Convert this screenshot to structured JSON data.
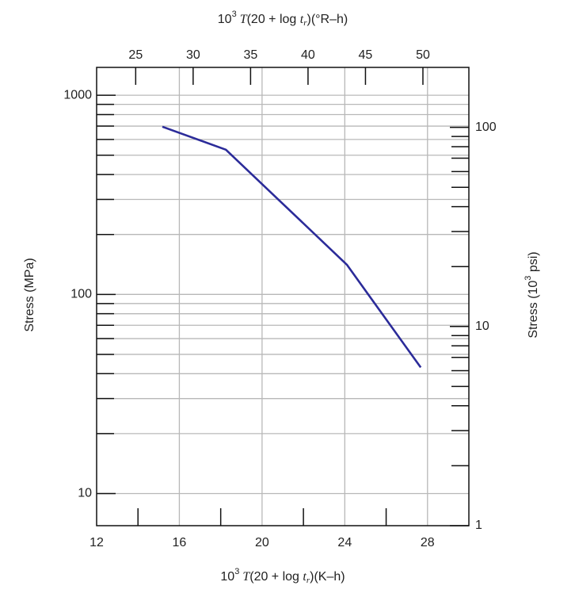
{
  "chart_data": {
    "type": "line",
    "x2label": [
      "10",
      "3",
      " T",
      "(20 + log ",
      "t",
      "r",
      ")(°R–h)"
    ],
    "xlabel": [
      "10",
      "3",
      " T",
      "(20 + log ",
      "t",
      "r",
      ")(K–h)"
    ],
    "ylabel": "Stress (MPa)",
    "y2label": [
      "Stress (10",
      "3",
      " psi)"
    ],
    "x": [
      15.18,
      18.25,
      24.1,
      27.67
    ],
    "series": [
      {
        "color": "#2b2b99",
        "values": [
          695,
          533,
          141,
          43
        ]
      }
    ],
    "xlim": [
      12,
      30
    ],
    "xticks": [
      12,
      16,
      20,
      24,
      28
    ],
    "xminor": [
      14,
      18,
      22,
      26
    ],
    "x2lim": [
      21.6,
      54
    ],
    "x2ticks": [
      25,
      30,
      35,
      40,
      45,
      50
    ],
    "ylim": [
      6.9,
      1380
    ],
    "yticks": [
      10,
      100,
      1000
    ],
    "yminor": [
      20,
      30,
      40,
      50,
      60,
      70,
      80,
      90,
      200,
      300,
      400,
      500,
      600,
      700,
      800,
      900
    ],
    "y2lim": [
      1,
      200
    ],
    "y2ticks": [
      1,
      10,
      100
    ],
    "y2minor": [
      2,
      3,
      4,
      5,
      6,
      7,
      8,
      9,
      20,
      30,
      40,
      50,
      60,
      70,
      80,
      90
    ],
    "log_scale": true,
    "grid": true
  }
}
